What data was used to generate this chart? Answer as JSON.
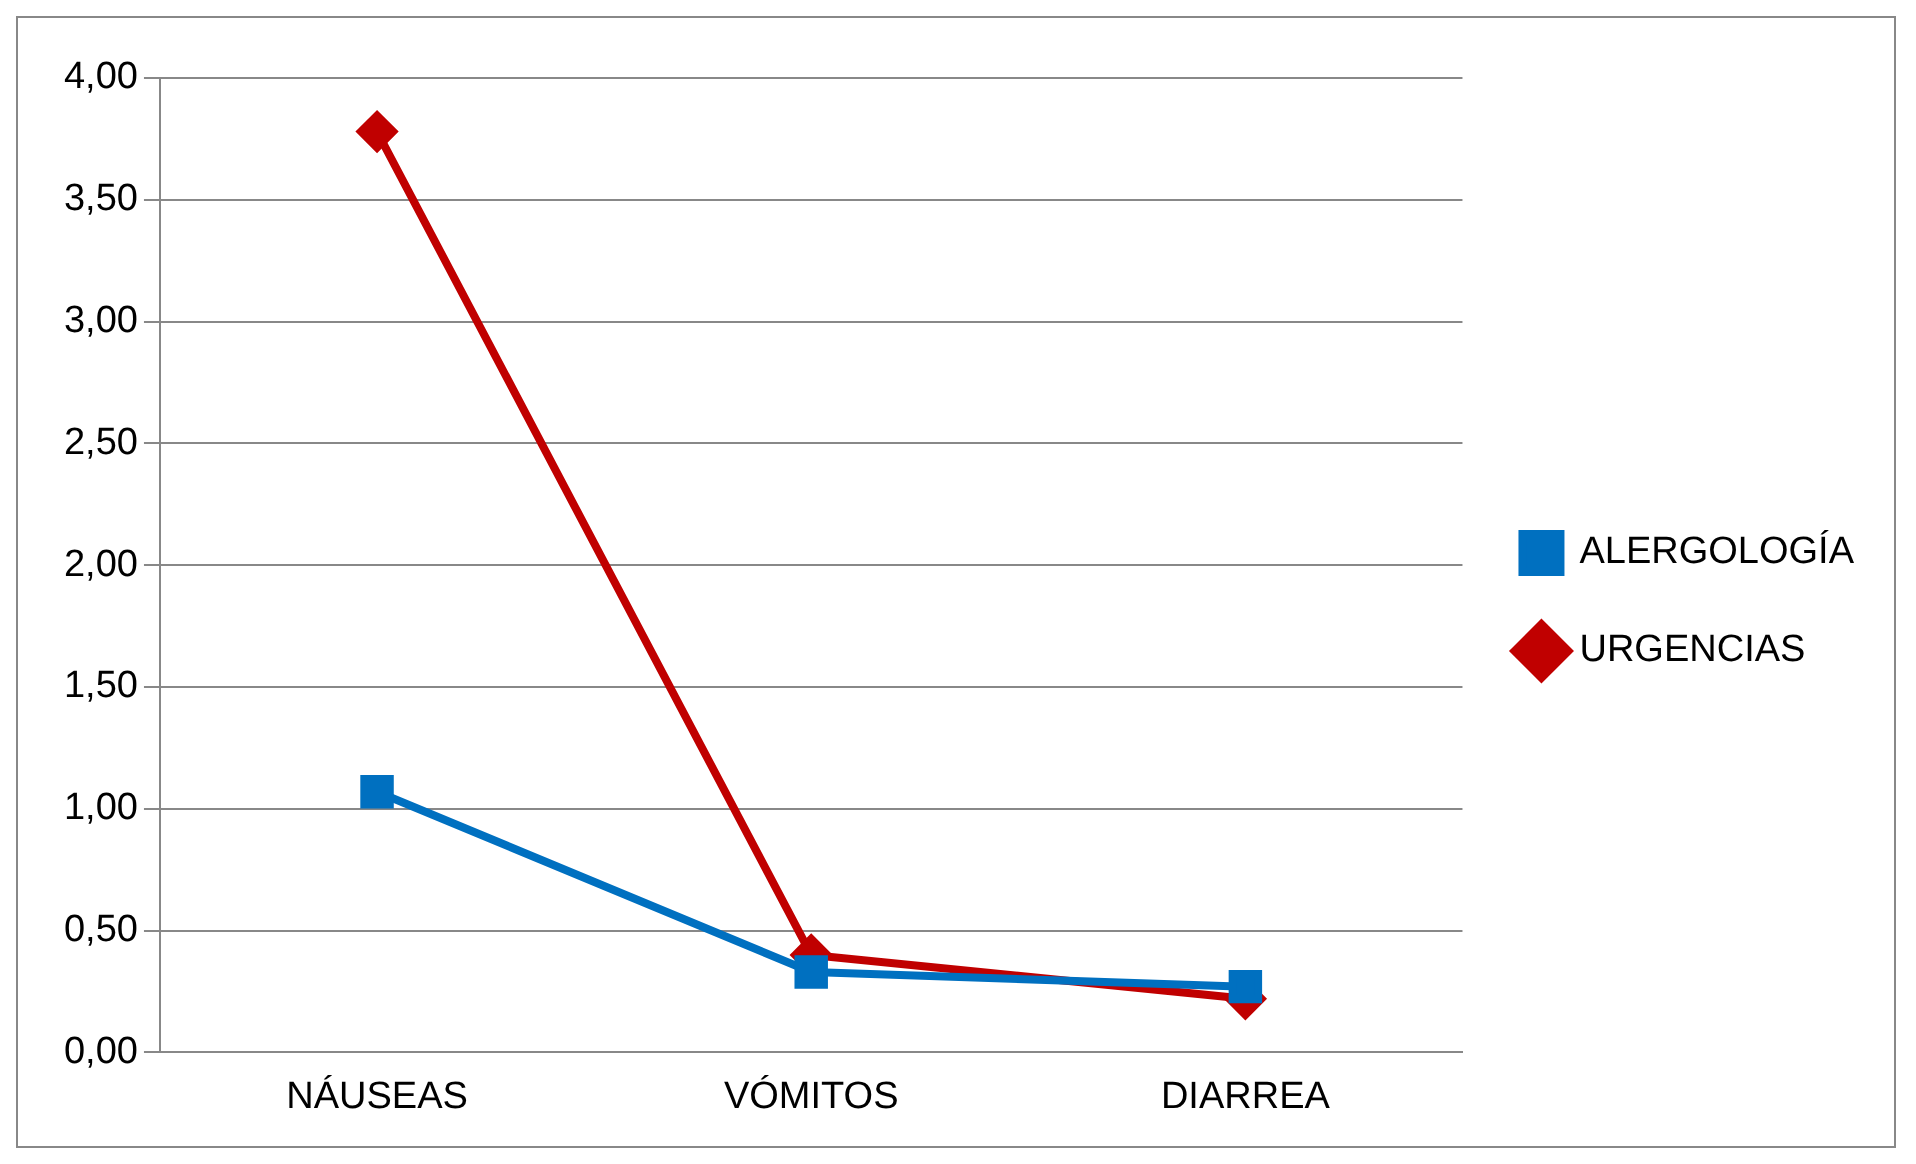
{
  "chart_data": {
    "type": "line",
    "categories": [
      "NÁUSEAS",
      "VÓMITOS",
      "DIARREA"
    ],
    "series": [
      {
        "name": "URGENCIAS",
        "color": "#c00000",
        "marker": "diamond",
        "values": [
          3.78,
          0.4,
          0.22
        ]
      },
      {
        "name": "ALERGOLOGÍA",
        "color": "#0070c0",
        "marker": "square",
        "values": [
          1.07,
          0.33,
          0.27
        ]
      }
    ],
    "ylim": [
      0,
      4
    ],
    "yticks": [
      {
        "value": 0,
        "label": "0,00"
      },
      {
        "value": 0.5,
        "label": "0,50"
      },
      {
        "value": 1,
        "label": "1,00"
      },
      {
        "value": 1.5,
        "label": "1,50"
      },
      {
        "value": 2,
        "label": "2,00"
      },
      {
        "value": 2.5,
        "label": "2,50"
      },
      {
        "value": 3,
        "label": "3,00"
      },
      {
        "value": 3.5,
        "label": "3,50"
      },
      {
        "value": 4,
        "label": "4,00"
      }
    ],
    "grid": "y",
    "legend": "right"
  }
}
